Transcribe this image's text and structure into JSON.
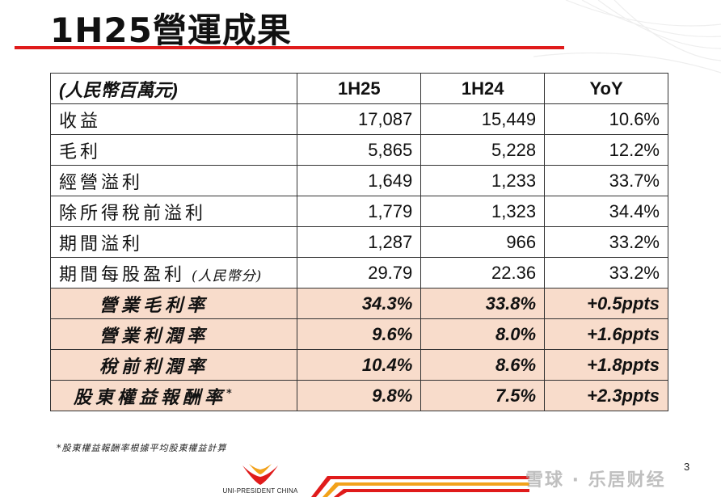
{
  "slide": {
    "title": "1H25營運成果",
    "page_number": "3",
    "footnote": "*股東權益報酬率根據平均股東權益計算",
    "logo_text": "UNI-PRESIDENT CHINA",
    "watermark": "雪球 · 乐居财经"
  },
  "table": {
    "unit_label": "(人民幣百萬元)",
    "columns": [
      "1H25",
      "1H24",
      "YoY"
    ],
    "rows": [
      {
        "label": "收益",
        "values": [
          "17,087",
          "15,449",
          "10.6%"
        ]
      },
      {
        "label": "毛利",
        "values": [
          "5,865",
          "5,228",
          "12.2%"
        ]
      },
      {
        "label": "經營溢利",
        "values": [
          "1,649",
          "1,233",
          "33.7%"
        ]
      },
      {
        "label": "除所得稅前溢利",
        "values": [
          "1,779",
          "1,323",
          "34.4%"
        ]
      },
      {
        "label": "期間溢利",
        "values": [
          "1,287",
          "966",
          "33.2%"
        ]
      },
      {
        "label": "期間每股盈利",
        "sub_label": "(人民幣分)",
        "values": [
          "29.79",
          "22.36",
          "33.2%"
        ]
      }
    ],
    "ratio_rows": [
      {
        "label": "營業毛利率",
        "values": [
          "34.3%",
          "33.8%",
          "+0.5ppts"
        ]
      },
      {
        "label": "營業利潤率",
        "values": [
          "9.6%",
          "8.0%",
          "+1.6ppts"
        ]
      },
      {
        "label": "稅前利潤率",
        "values": [
          "10.4%",
          "8.6%",
          "+1.8ppts"
        ]
      },
      {
        "label": "股東權益報酬率",
        "marker": "*",
        "values": [
          "9.8%",
          "7.5%",
          "+2.3ppts"
        ]
      }
    ]
  },
  "colors": {
    "accent_red": "#e01b1b",
    "ratio_row_bg": "#f8dccb"
  }
}
